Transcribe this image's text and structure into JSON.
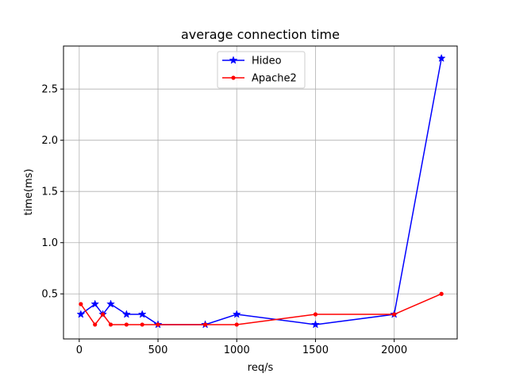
{
  "chart_data": {
    "type": "line",
    "title": "average connection time",
    "xlabel": "req/s",
    "ylabel": "time(ms)",
    "xlim": [
      -100,
      2400
    ],
    "ylim": [
      0.06,
      2.92
    ],
    "xticks": [
      0,
      500,
      1000,
      1500,
      2000
    ],
    "yticks": [
      0.5,
      1.0,
      1.5,
      2.0,
      2.5
    ],
    "ytick_labels": [
      "0.5",
      "1.0",
      "1.5",
      "2.0",
      "2.5"
    ],
    "grid": true,
    "legend_position": "upper center",
    "series": [
      {
        "name": "Hideo",
        "color": "#0000ff",
        "marker": "star",
        "x": [
          10,
          100,
          150,
          200,
          300,
          400,
          500,
          800,
          1000,
          1500,
          2000,
          2300
        ],
        "y": [
          0.3,
          0.4,
          0.3,
          0.4,
          0.3,
          0.3,
          0.2,
          0.2,
          0.3,
          0.2,
          0.3,
          2.8
        ]
      },
      {
        "name": "Apache2",
        "color": "#ff0000",
        "marker": "dot",
        "x": [
          10,
          100,
          150,
          200,
          300,
          400,
          500,
          800,
          1000,
          1500,
          2000,
          2300
        ],
        "y": [
          0.4,
          0.2,
          0.3,
          0.2,
          0.2,
          0.2,
          0.2,
          0.2,
          0.2,
          0.3,
          0.3,
          0.5
        ]
      }
    ]
  }
}
